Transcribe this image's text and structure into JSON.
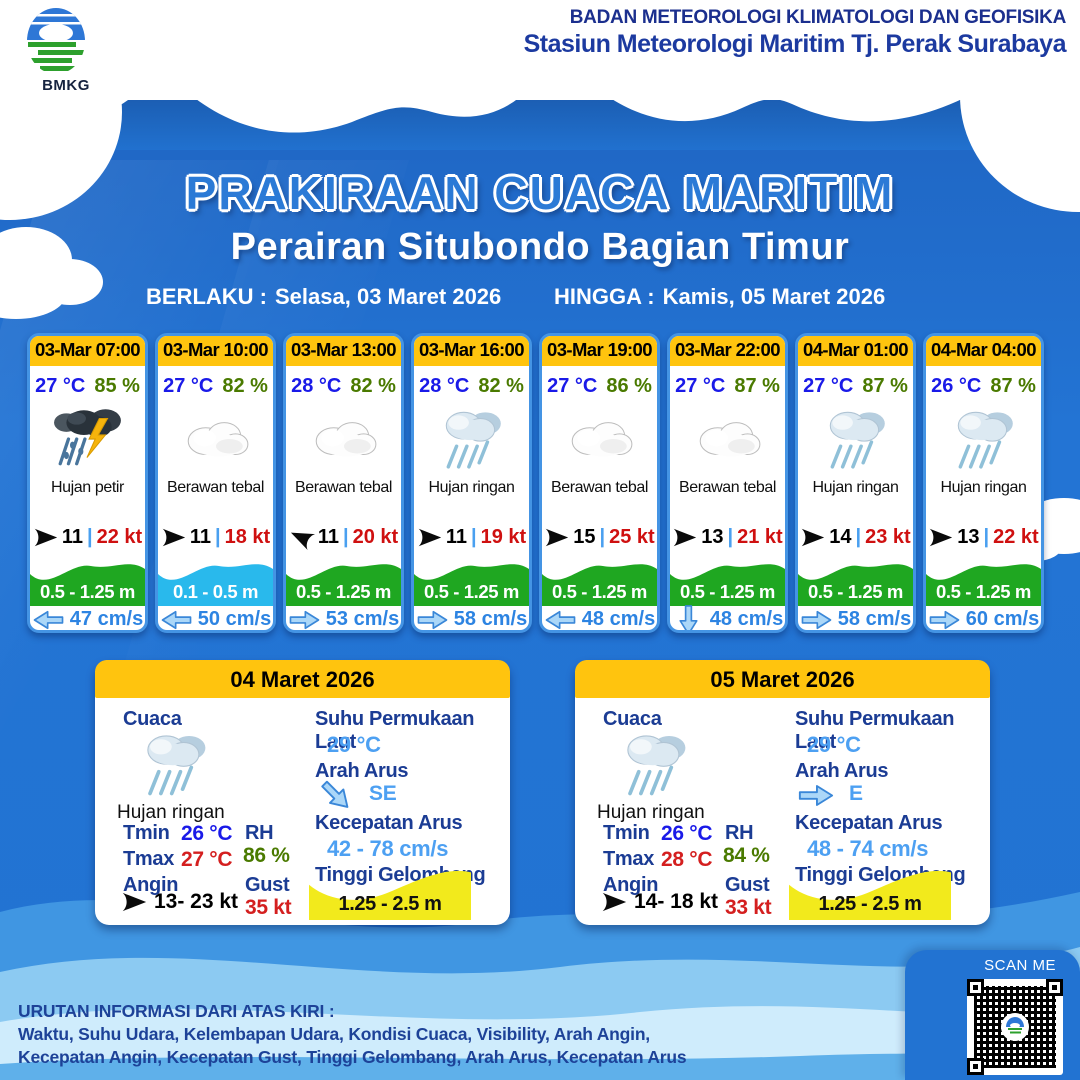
{
  "header": {
    "org_line1": "BADAN METEOROLOGI KLIMATOLOGI DAN GEOFISIKA",
    "org_line2": "Stasiun Meteorologi Maritim Tj. Perak Surabaya",
    "logo_label": "BMKG"
  },
  "title": "PRAKIRAAN CUACA MARITIM",
  "subtitle": "Perairan Situbondo Bagian Timur",
  "validity": {
    "berlaku_label": "BERLAKU :",
    "berlaku_value": "Selasa, 03 Maret 2026",
    "hingga_label": "HINGGA :",
    "hingga_value": "Kamis, 05 Maret 2026"
  },
  "wind_separator": "|",
  "hourly_cards": [
    {
      "time": "03-Mar 07:00",
      "temp": "27 °C",
      "rh": "85 %",
      "icon": "storm",
      "condition": "Hujan petir",
      "wind_low": "11",
      "wind_high": "22 kt",
      "wind_rot": 0,
      "wave": "0.5 - 1.25 m",
      "wave_color": "#1fa721",
      "current": "47 cm/s",
      "cur_rot": 180
    },
    {
      "time": "03-Mar 10:00",
      "temp": "27 °C",
      "rh": "82 %",
      "icon": "cloud",
      "condition": "Berawan tebal",
      "wind_low": "11",
      "wind_high": "18 kt",
      "wind_rot": 0,
      "wave": "0.1 - 0.5 m",
      "wave_color": "#29b9ec",
      "current": "50 cm/s",
      "cur_rot": 180
    },
    {
      "time": "03-Mar 13:00",
      "temp": "28 °C",
      "rh": "82 %",
      "icon": "cloud",
      "condition": "Berawan tebal",
      "wind_low": "11",
      "wind_high": "20 kt",
      "wind_rot": 205,
      "wave": "0.5 - 1.25 m",
      "wave_color": "#1fa721",
      "current": "53 cm/s",
      "cur_rot": 0
    },
    {
      "time": "03-Mar 16:00",
      "temp": "28 °C",
      "rh": "82 %",
      "icon": "rain",
      "condition": "Hujan ringan",
      "wind_low": "11",
      "wind_high": "19 kt",
      "wind_rot": 0,
      "wave": "0.5 - 1.25 m",
      "wave_color": "#1fa721",
      "current": "58 cm/s",
      "cur_rot": 0
    },
    {
      "time": "03-Mar 19:00",
      "temp": "27 °C",
      "rh": "86 %",
      "icon": "cloud",
      "condition": "Berawan tebal",
      "wind_low": "15",
      "wind_high": "25 kt",
      "wind_rot": 0,
      "wave": "0.5 - 1.25 m",
      "wave_color": "#1fa721",
      "current": "48 cm/s",
      "cur_rot": 180
    },
    {
      "time": "03-Mar 22:00",
      "temp": "27 °C",
      "rh": "87 %",
      "icon": "cloud",
      "condition": "Berawan tebal",
      "wind_low": "13",
      "wind_high": "21 kt",
      "wind_rot": 0,
      "wave": "0.5 - 1.25 m",
      "wave_color": "#1fa721",
      "current": "48 cm/s",
      "cur_rot": 90
    },
    {
      "time": "04-Mar 01:00",
      "temp": "27 °C",
      "rh": "87 %",
      "icon": "rain",
      "condition": "Hujan ringan",
      "wind_low": "14",
      "wind_high": "23 kt",
      "wind_rot": 0,
      "wave": "0.5 - 1.25 m",
      "wave_color": "#1fa721",
      "current": "58 cm/s",
      "cur_rot": 0
    },
    {
      "time": "04-Mar 04:00",
      "temp": "26 °C",
      "rh": "87 %",
      "icon": "rain",
      "condition": "Hujan ringan",
      "wind_low": "13",
      "wind_high": "22 kt",
      "wind_rot": 0,
      "wave": "0.5 - 1.25 m",
      "wave_color": "#1fa721",
      "current": "60 cm/s",
      "cur_rot": 0
    }
  ],
  "daily_cards": [
    {
      "date": "04 Maret 2026",
      "cuaca_label": "Cuaca",
      "icon": "rain",
      "condition": "Hujan ringan",
      "tmin_label": "Tmin",
      "tmin": "26 °C",
      "tmax_label": "Tmax",
      "tmax": "27 °C",
      "angin_label": "Angin",
      "wind": "13- 23 kt",
      "rh_label": "RH",
      "rh": "86 %",
      "gust_label": "Gust",
      "gust": "35 kt",
      "spl_label": "Suhu Permukaan Laut",
      "spl": "29 °C",
      "arah_label": "Arah Arus",
      "arah": "SE",
      "arah_rot": 45,
      "kec_label": "Kecepatan Arus",
      "kec": "42 - 78 cm/s",
      "wave_label": "Tinggi Gelombang",
      "wave": "1.25 - 2.5 m"
    },
    {
      "date": "05 Maret 2026",
      "cuaca_label": "Cuaca",
      "icon": "rain",
      "condition": "Hujan ringan",
      "tmin_label": "Tmin",
      "tmin": "26 °C",
      "tmax_label": "Tmax",
      "tmax": "28 °C",
      "angin_label": "Angin",
      "wind": "14- 18 kt",
      "rh_label": "RH",
      "rh": "84 %",
      "gust_label": "Gust",
      "gust": "33 kt",
      "spl_label": "Suhu Permukaan Laut",
      "spl": "29 °C",
      "arah_label": "Arah Arus",
      "arah": "E",
      "arah_rot": 0,
      "kec_label": "Kecepatan Arus",
      "kec": "48 - 74 cm/s",
      "wave_label": "Tinggi Gelombang",
      "wave": "1.25 - 2.5 m"
    }
  ],
  "footer": {
    "line1": "URUTAN INFORMASI DARI ATAS KIRI :",
    "line2": "Waktu, Suhu Udara, Kelembapan Udara, Kondisi Cuaca, Visibility, Arah Angin,",
    "line3": "Kecepatan Angin, Kecepatan Gust, Tinggi Gelombang, Arah Arus, Kecepatan Arus",
    "scan_me": "SCAN ME"
  },
  "colors": {
    "header_yellow": "#ffc40e",
    "sea_blue": "#2273d2",
    "wave_green": "#1fa721",
    "wave_cyan": "#29b9ec",
    "wave_yellow": "#f2ea1c",
    "temp_blue": "#1a1ae8",
    "humidity_green": "#4a7a00",
    "wind_red": "#cf1010",
    "current_blue": "#2d84e2",
    "label_navy": "#1b3c94",
    "value_lightblue": "#4da0f2"
  }
}
